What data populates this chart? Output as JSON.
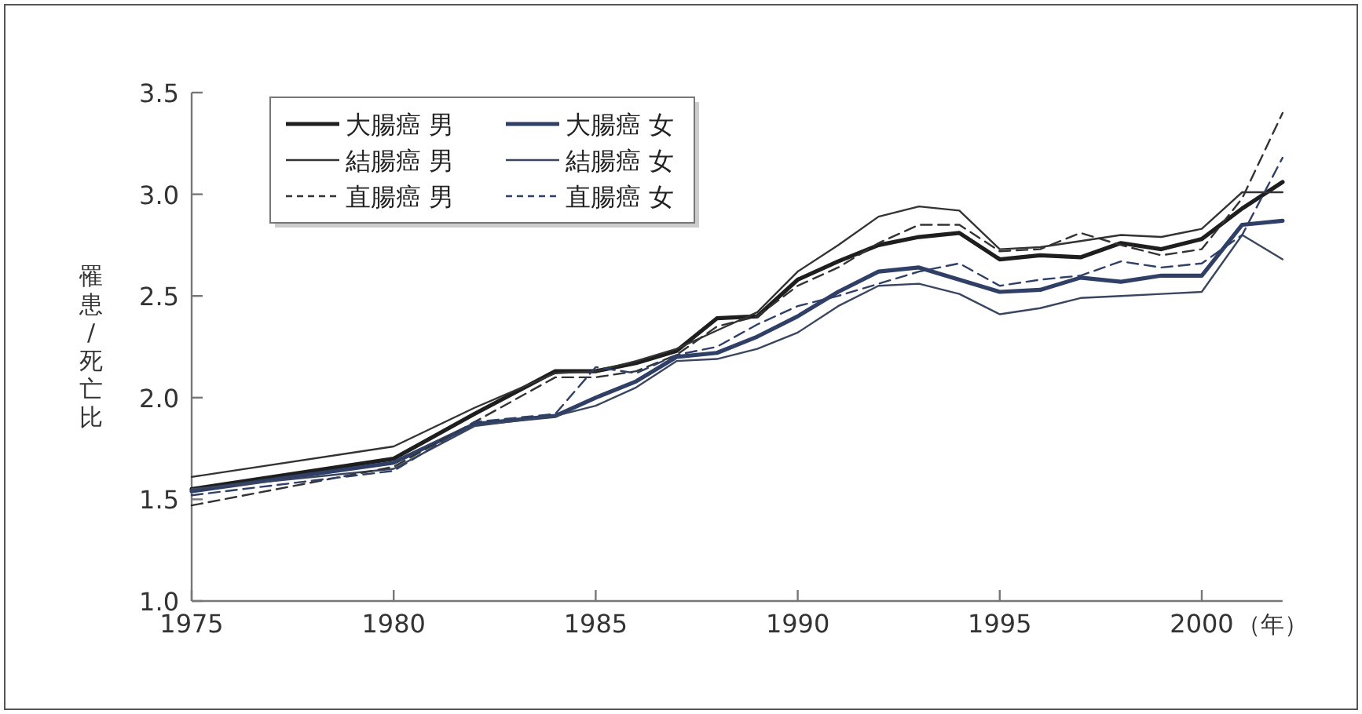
{
  "chart_data": {
    "type": "line",
    "ylabel": "罹患/死亡比",
    "xlabel": "（年）",
    "x": [
      1975,
      1980,
      1982,
      1984,
      1985,
      1986,
      1987,
      1988,
      1989,
      1990,
      1991,
      1992,
      1993,
      1994,
      1995,
      1996,
      1997,
      1998,
      1999,
      2000,
      2001,
      2002
    ],
    "xlim": [
      1975,
      2002
    ],
    "xticks": [
      1975,
      1980,
      1985,
      1990,
      1995,
      2000
    ],
    "ylim": [
      1.0,
      3.5
    ],
    "yticks": [
      {
        "value": 1.0,
        "label": "1.0"
      },
      1.5,
      {
        "value": 2.0,
        "label": "2.0"
      },
      2.5,
      {
        "value": 3.0,
        "label": "3.0"
      },
      3.5
    ],
    "grid": false,
    "legend": "top left",
    "marker": "none",
    "series": [
      {
        "name": "大腸癌 男",
        "color": "#1e1e1e",
        "line_style": "solid",
        "values": [
          1.55,
          1.7,
          1.92,
          2.13,
          2.13,
          2.17,
          2.23,
          2.39,
          2.4,
          2.58,
          2.67,
          2.75,
          2.79,
          2.81,
          2.68,
          2.7,
          2.69,
          2.76,
          2.73,
          2.78,
          2.93,
          3.06
        ]
      },
      {
        "name": "大腸癌 女",
        "color": "#2f3f66",
        "line_style": "solid",
        "values": [
          1.54,
          1.68,
          1.87,
          1.91,
          2.0,
          2.08,
          2.2,
          2.22,
          2.3,
          2.4,
          2.52,
          2.62,
          2.64,
          2.58,
          2.52,
          2.53,
          2.59,
          2.57,
          2.6,
          2.6,
          2.85,
          2.87
        ]
      },
      {
        "name": "結腸癌 男",
        "color": "#333333",
        "line_style": "solid",
        "values": [
          1.61,
          1.76,
          1.95,
          2.12,
          2.13,
          2.18,
          2.24,
          2.33,
          2.42,
          2.62,
          2.75,
          2.89,
          2.94,
          2.92,
          2.73,
          2.74,
          2.77,
          2.8,
          2.79,
          2.83,
          3.01,
          3.01
        ]
      },
      {
        "name": "結腸癌 女",
        "color": "#3a4660",
        "line_style": "solid",
        "values": [
          1.55,
          1.65,
          1.86,
          1.91,
          1.96,
          2.05,
          2.18,
          2.19,
          2.24,
          2.32,
          2.45,
          2.55,
          2.56,
          2.51,
          2.41,
          2.44,
          2.49,
          2.5,
          2.51,
          2.52,
          2.8,
          2.68
        ]
      },
      {
        "name": "直腸癌 男",
        "color": "#333333",
        "line_style": "dashed",
        "values": [
          1.47,
          1.66,
          1.88,
          2.1,
          2.1,
          2.13,
          2.21,
          2.35,
          2.4,
          2.55,
          2.64,
          2.76,
          2.85,
          2.85,
          2.72,
          2.73,
          2.81,
          2.75,
          2.7,
          2.73,
          2.98,
          3.4
        ]
      },
      {
        "name": "直腸癌 女",
        "color": "#2f3f66",
        "line_style": "dashed",
        "values": [
          1.52,
          1.64,
          1.88,
          1.92,
          2.15,
          2.12,
          2.21,
          2.25,
          2.36,
          2.45,
          2.5,
          2.56,
          2.62,
          2.66,
          2.55,
          2.58,
          2.6,
          2.67,
          2.64,
          2.66,
          2.8,
          3.18
        ]
      }
    ]
  }
}
